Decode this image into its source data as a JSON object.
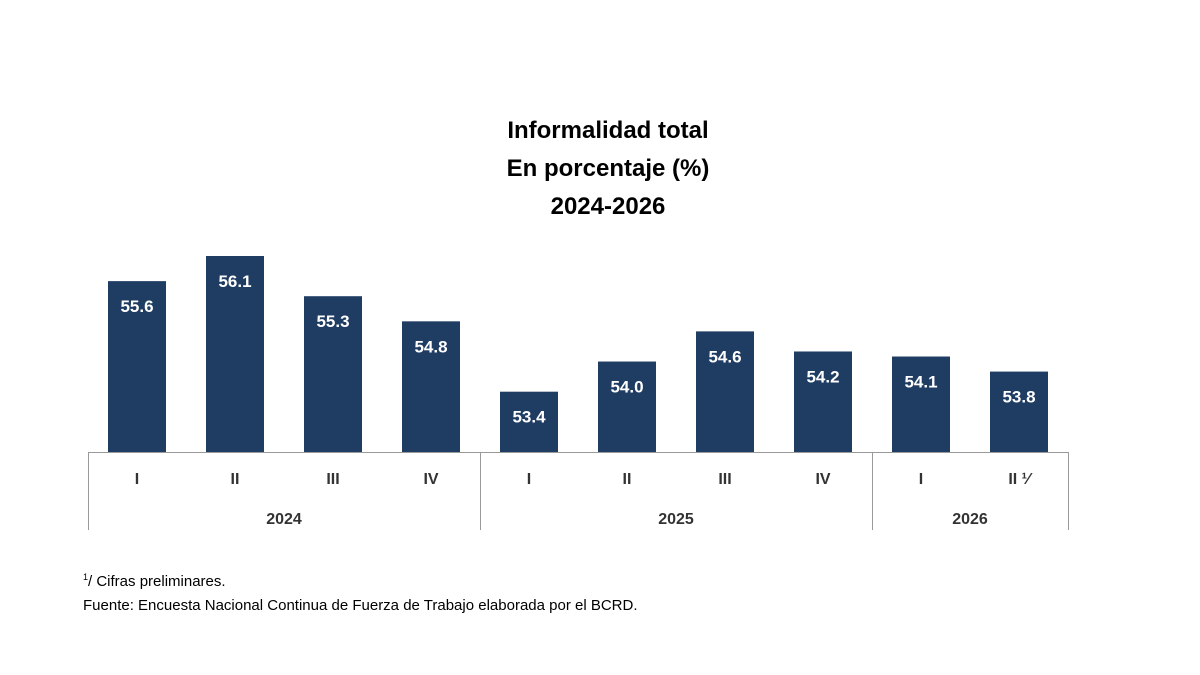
{
  "chart_data": {
    "type": "bar",
    "title": "Informalidad total",
    "subtitle": "En porcentaje (%)",
    "period": "2024-2026",
    "categories": [
      "I",
      "II",
      "III",
      "IV",
      "I",
      "II",
      "III",
      "IV",
      "I",
      "II ¹⁄"
    ],
    "groups": [
      {
        "label": "2024",
        "count": 4
      },
      {
        "label": "2025",
        "count": 4
      },
      {
        "label": "2026",
        "count": 2
      }
    ],
    "values": [
      55.6,
      56.1,
      55.3,
      54.8,
      53.4,
      54.0,
      54.6,
      54.2,
      54.1,
      53.8
    ],
    "value_labels": [
      "55.6",
      "56.1",
      "55.3",
      "54.8",
      "53.4",
      "54.0",
      "54.6",
      "54.2",
      "54.1",
      "53.8"
    ],
    "ylim": [
      52.2,
      56.1
    ],
    "grid": false,
    "bar_color": "#1f3c63",
    "label_color": "#ffffff"
  },
  "notes": {
    "preliminary_mark": "1",
    "preliminary_text": "/ Cifras preliminares.",
    "source": "Fuente: Encuesta Nacional Continua de Fuerza de Trabajo elaborada por el BCRD."
  }
}
